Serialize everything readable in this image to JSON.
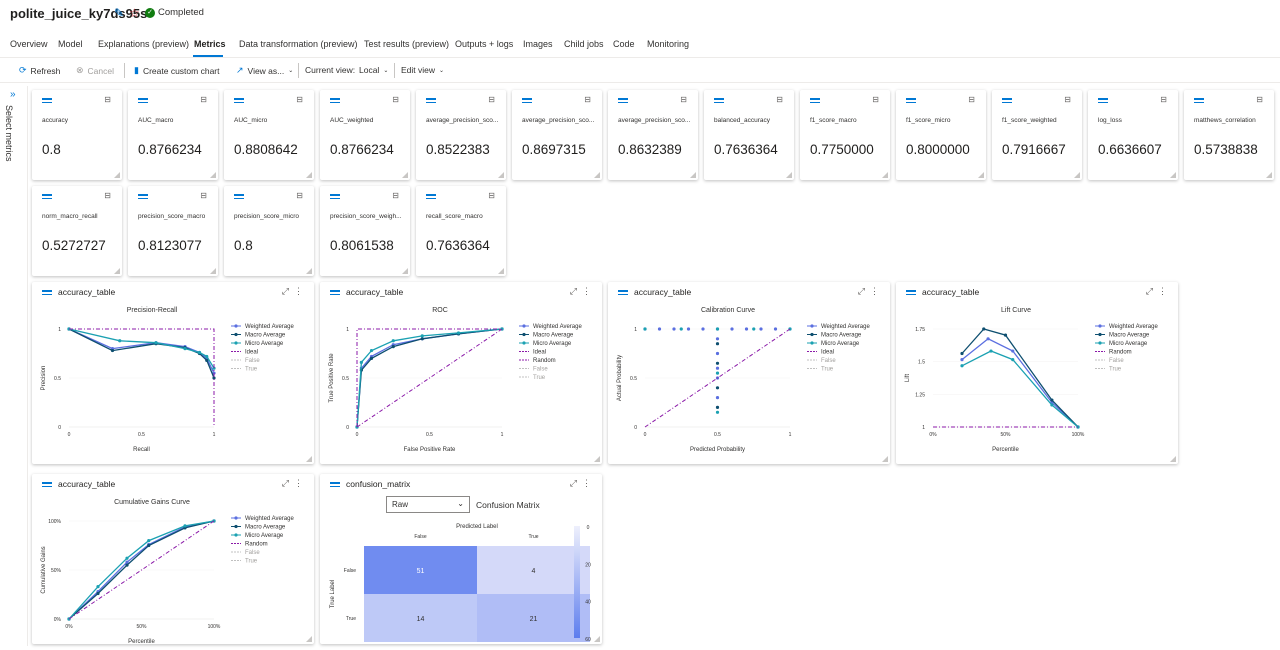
{
  "run": {
    "name": "polite_juice_ky7ds95s",
    "status": "Completed",
    "edit_icon": "pencil-icon",
    "favorite_icon": "star-icon",
    "status_icon": "check-circle-icon"
  },
  "tabs": [
    {
      "label": "Overview",
      "active": false
    },
    {
      "label": "Model",
      "active": false
    },
    {
      "label": "Explanations (preview)",
      "active": false
    },
    {
      "label": "Metrics",
      "active": true
    },
    {
      "label": "Data transformation (preview)",
      "active": false
    },
    {
      "label": "Test results (preview)",
      "active": false
    },
    {
      "label": "Outputs + logs",
      "active": false
    },
    {
      "label": "Images",
      "active": false
    },
    {
      "label": "Child jobs",
      "active": false
    },
    {
      "label": "Code",
      "active": false
    },
    {
      "label": "Monitoring",
      "active": false
    }
  ],
  "toolbar": {
    "refresh": "Refresh",
    "cancel": "Cancel",
    "create_chart": "Create custom chart",
    "view_as": "View as...",
    "current_view_label": "Current view:",
    "current_view_value": "Local",
    "edit_view": "Edit view"
  },
  "sidebar": {
    "label": "Select metrics"
  },
  "metrics": [
    {
      "name": "accuracy",
      "value": "0.8"
    },
    {
      "name": "AUC_macro",
      "value": "0.8766234"
    },
    {
      "name": "AUC_micro",
      "value": "0.8808642"
    },
    {
      "name": "AUC_weighted",
      "value": "0.8766234"
    },
    {
      "name": "average_precision_sco...",
      "value": "0.8522383"
    },
    {
      "name": "average_precision_sco...",
      "value": "0.8697315"
    },
    {
      "name": "average_precision_sco...",
      "value": "0.8632389"
    },
    {
      "name": "balanced_accuracy",
      "value": "0.7636364"
    },
    {
      "name": "f1_score_macro",
      "value": "0.7750000"
    },
    {
      "name": "f1_score_micro",
      "value": "0.8000000"
    },
    {
      "name": "f1_score_weighted",
      "value": "0.7916667"
    },
    {
      "name": "log_loss",
      "value": "0.6636607"
    },
    {
      "name": "matthews_correlation",
      "value": "0.5738838"
    },
    {
      "name": "norm_macro_recall",
      "value": "0.5272727"
    },
    {
      "name": "precision_score_macro",
      "value": "0.8123077"
    },
    {
      "name": "precision_score_micro",
      "value": "0.8"
    },
    {
      "name": "precision_score_weigh...",
      "value": "0.8061538"
    },
    {
      "name": "recall_score_macro",
      "value": "0.7636364"
    }
  ],
  "legend_colors": {
    "weighted": "#5b6fe0",
    "macro": "#0e4f70",
    "micro": "#1ba1b2",
    "ideal": "#8b1aa8",
    "muted": "#c0c0c0"
  },
  "chart_data": [
    {
      "card_title": "accuracy_table",
      "type": "line",
      "title": "Precision-Recall",
      "xlabel": "Recall",
      "ylabel": "Precision",
      "xlim": [
        0,
        1
      ],
      "ylim": [
        0,
        1
      ],
      "xticks": [
        "0",
        "0.5",
        "1"
      ],
      "yticks": [
        "0",
        "0.5",
        "1"
      ],
      "legend": [
        "Weighted Average",
        "Macro Average",
        "Micro Average",
        "Ideal",
        "False",
        "True"
      ],
      "series": [
        {
          "name": "Weighted Average",
          "x": [
            0,
            0.3,
            0.6,
            0.8,
            0.9,
            0.95,
            1
          ],
          "y": [
            1,
            0.8,
            0.86,
            0.82,
            0.76,
            0.7,
            0.55
          ]
        },
        {
          "name": "Macro Average",
          "x": [
            0,
            0.3,
            0.6,
            0.8,
            0.9,
            0.95,
            1
          ],
          "y": [
            1,
            0.78,
            0.85,
            0.81,
            0.75,
            0.68,
            0.5
          ]
        },
        {
          "name": "Micro Average",
          "x": [
            0,
            0.35,
            0.6,
            0.8,
            0.9,
            0.95,
            1
          ],
          "y": [
            1,
            0.88,
            0.86,
            0.8,
            0.76,
            0.72,
            0.6
          ]
        },
        {
          "name": "Ideal",
          "x": [
            0,
            1,
            1
          ],
          "y": [
            1,
            1,
            0
          ]
        }
      ]
    },
    {
      "card_title": "accuracy_table",
      "type": "line",
      "title": "ROC",
      "xlabel": "False Positive Rate",
      "ylabel": "True Positive Rate",
      "xlim": [
        0,
        1
      ],
      "ylim": [
        0,
        1
      ],
      "xticks": [
        "0",
        "0.5",
        "1"
      ],
      "yticks": [
        "0",
        "0.5",
        "1"
      ],
      "legend": [
        "Weighted Average",
        "Macro Average",
        "Micro Average",
        "Ideal",
        "Random",
        "False",
        "True"
      ],
      "series": [
        {
          "name": "Weighted Average",
          "x": [
            0,
            0.03,
            0.1,
            0.25,
            0.45,
            0.7,
            1
          ],
          "y": [
            0,
            0.6,
            0.72,
            0.84,
            0.9,
            0.95,
            1
          ]
        },
        {
          "name": "Macro Average",
          "x": [
            0,
            0.03,
            0.1,
            0.25,
            0.45,
            0.7,
            1
          ],
          "y": [
            0,
            0.58,
            0.7,
            0.82,
            0.9,
            0.95,
            1
          ]
        },
        {
          "name": "Micro Average",
          "x": [
            0,
            0.03,
            0.1,
            0.25,
            0.45,
            0.7,
            1
          ],
          "y": [
            0,
            0.66,
            0.78,
            0.88,
            0.93,
            0.96,
            1
          ]
        },
        {
          "name": "Ideal",
          "x": [
            0,
            0,
            1
          ],
          "y": [
            0,
            1,
            1
          ]
        },
        {
          "name": "Random",
          "x": [
            0,
            1
          ],
          "y": [
            0,
            1
          ]
        }
      ]
    },
    {
      "card_title": "accuracy_table",
      "type": "scatter",
      "title": "Calibration Curve",
      "xlabel": "Predicted Probability",
      "ylabel": "Actual Probability",
      "xlim": [
        0,
        1
      ],
      "ylim": [
        0,
        1
      ],
      "xticks": [
        "0",
        "0.5",
        "1"
      ],
      "yticks": [
        "0",
        "0.5",
        "1"
      ],
      "legend": [
        "Weighted Average",
        "Macro Average",
        "Micro Average",
        "Ideal",
        "False",
        "True"
      ],
      "series": [
        {
          "name": "Weighted Average",
          "x": [
            0,
            0.1,
            0.2,
            0.3,
            0.4,
            0.5,
            0.6,
            0.7,
            0.8,
            0.9,
            1,
            0.5,
            0.5,
            0.5,
            0.5,
            0.5
          ],
          "y": [
            1,
            1,
            1,
            1,
            1,
            1,
            1,
            1,
            1,
            1,
            1,
            0.9,
            0.75,
            0.6,
            0.5,
            0.3
          ]
        },
        {
          "name": "Macro Average",
          "x": [
            0.5,
            0.5,
            0.5,
            0.5
          ],
          "y": [
            0.85,
            0.65,
            0.4,
            0.2
          ]
        },
        {
          "name": "Micro Average",
          "x": [
            0,
            0.25,
            0.5,
            0.75,
            1,
            0.5,
            0.5
          ],
          "y": [
            1,
            1,
            1,
            1,
            1,
            0.55,
            0.15
          ]
        },
        {
          "name": "Ideal",
          "x": [
            0,
            1
          ],
          "y": [
            0,
            1
          ]
        }
      ]
    },
    {
      "card_title": "accuracy_table",
      "type": "line",
      "title": "Lift Curve",
      "xlabel": "Percentile",
      "ylabel": "Lift",
      "xlim": [
        0,
        100
      ],
      "ylim": [
        1,
        1.8
      ],
      "xticks": [
        "0%",
        "50%",
        "100%"
      ],
      "yticks": [
        "1",
        "1.25",
        "1.5",
        "1.75"
      ],
      "legend": [
        "Weighted Average",
        "Macro Average",
        "Micro Average",
        "Random",
        "False",
        "True"
      ],
      "series": [
        {
          "name": "Weighted Average",
          "x": [
            20,
            38,
            55,
            82,
            100
          ],
          "y": [
            1.55,
            1.72,
            1.62,
            1.2,
            1
          ]
        },
        {
          "name": "Macro Average",
          "x": [
            20,
            35,
            50,
            82,
            100
          ],
          "y": [
            1.6,
            1.8,
            1.75,
            1.22,
            1
          ]
        },
        {
          "name": "Micro Average",
          "x": [
            20,
            40,
            55,
            82,
            100
          ],
          "y": [
            1.5,
            1.62,
            1.55,
            1.18,
            1
          ]
        },
        {
          "name": "Random",
          "x": [
            0,
            100
          ],
          "y": [
            1,
            1
          ]
        }
      ]
    },
    {
      "card_title": "accuracy_table",
      "type": "line",
      "title": "Cumulative Gains Curve",
      "xlabel": "Percentile",
      "ylabel": "Cumulative Gains",
      "xlim": [
        0,
        100
      ],
      "ylim": [
        0,
        100
      ],
      "xticks": [
        "0%",
        "50%",
        "100%"
      ],
      "yticks": [
        "0%",
        "50%",
        "100%"
      ],
      "legend": [
        "Weighted Average",
        "Macro Average",
        "Micro Average",
        "Random",
        "False",
        "True"
      ],
      "series": [
        {
          "name": "Weighted Average",
          "x": [
            0,
            20,
            40,
            55,
            80,
            100
          ],
          "y": [
            0,
            28,
            58,
            76,
            94,
            100
          ]
        },
        {
          "name": "Macro Average",
          "x": [
            0,
            20,
            40,
            55,
            80,
            100
          ],
          "y": [
            0,
            26,
            55,
            75,
            93,
            100
          ]
        },
        {
          "name": "Micro Average",
          "x": [
            0,
            20,
            40,
            55,
            80,
            100
          ],
          "y": [
            0,
            33,
            62,
            80,
            95,
            100
          ]
        },
        {
          "name": "Random",
          "x": [
            0,
            100
          ],
          "y": [
            0,
            100
          ]
        }
      ]
    },
    {
      "card_title": "confusion_matrix",
      "type": "heatmap",
      "title": "Confusion Matrix",
      "mode": "Raw",
      "xlabel": "Predicted Label",
      "ylabel": "True Label",
      "categories": [
        "False",
        "True"
      ],
      "values": [
        [
          51,
          4
        ],
        [
          14,
          21
        ]
      ],
      "colorbar_ticks": [
        "0",
        "20",
        "40",
        "60"
      ]
    }
  ]
}
